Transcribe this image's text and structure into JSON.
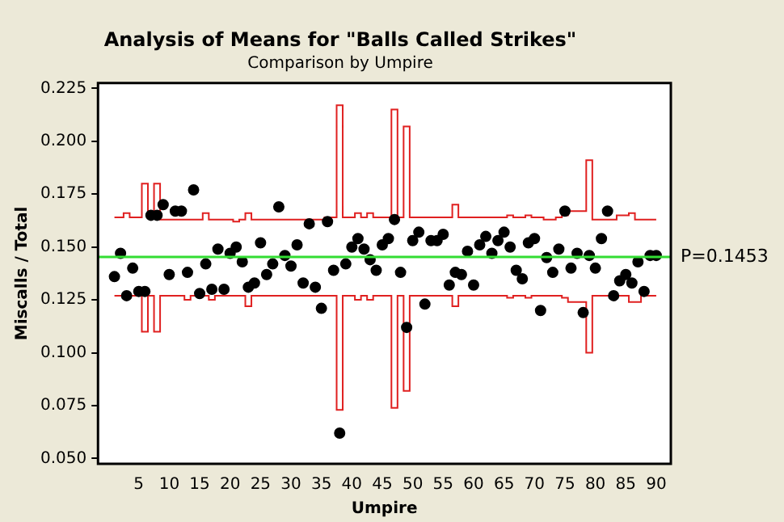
{
  "chart_data": {
    "type": "scatter",
    "title": "Analysis of Means for \"Balls Called Strikes\"",
    "subtitle": "Comparison by Umpire",
    "xlabel": "Umpire",
    "ylabel": "Miscalls / Total",
    "x": [
      1,
      2,
      3,
      4,
      5,
      6,
      7,
      8,
      9,
      10,
      11,
      12,
      13,
      14,
      15,
      16,
      17,
      18,
      19,
      20,
      21,
      22,
      23,
      24,
      25,
      26,
      27,
      28,
      29,
      30,
      31,
      32,
      33,
      34,
      35,
      36,
      37,
      38,
      39,
      40,
      41,
      42,
      43,
      44,
      45,
      46,
      47,
      48,
      49,
      50,
      51,
      52,
      53,
      54,
      55,
      56,
      57,
      58,
      59,
      60,
      61,
      62,
      63,
      64,
      65,
      66,
      67,
      68,
      69,
      70,
      71,
      72,
      73,
      74,
      75,
      76,
      77,
      78,
      79,
      80,
      81,
      82,
      83,
      84,
      85,
      86,
      87,
      88,
      89,
      90
    ],
    "series": [
      {
        "color": "#000000",
        "values": [
          0.136,
          0.147,
          0.127,
          0.14,
          0.129,
          0.129,
          0.165,
          0.165,
          0.17,
          0.137,
          0.167,
          0.167,
          0.138,
          0.177,
          0.128,
          0.142,
          0.13,
          0.149,
          0.13,
          0.147,
          0.15,
          0.143,
          0.131,
          0.133,
          0.152,
          0.137,
          0.142,
          0.169,
          0.146,
          0.141,
          0.151,
          0.133,
          0.161,
          0.131,
          0.121,
          0.162,
          0.139,
          0.062,
          0.142,
          0.15,
          0.154,
          0.149,
          0.144,
          0.139,
          0.151,
          0.154,
          0.163,
          0.138,
          0.112,
          0.153,
          0.157,
          0.123,
          0.153,
          0.153,
          0.156,
          0.132,
          0.138,
          0.137,
          0.148,
          0.132,
          0.151,
          0.155,
          0.147,
          0.153,
          0.157,
          0.15,
          0.139,
          0.135,
          0.152,
          0.154,
          0.12,
          0.145,
          0.138,
          0.149,
          0.167,
          0.14,
          0.147,
          0.119,
          0.146,
          0.14,
          0.154,
          0.167,
          0.127,
          0.134,
          0.137,
          0.133,
          0.143,
          0.129,
          0.146,
          0.146
        ]
      },
      {
        "type": "step",
        "marker": "none",
        "color": "#e02020",
        "values": [
          0.164,
          0.164,
          0.166,
          0.164,
          0.164,
          0.18,
          0.164,
          0.18,
          0.163,
          0.163,
          0.163,
          0.163,
          0.163,
          0.163,
          0.163,
          0.166,
          0.163,
          0.163,
          0.163,
          0.163,
          0.162,
          0.163,
          0.166,
          0.163,
          0.163,
          0.163,
          0.163,
          0.163,
          0.163,
          0.163,
          0.163,
          0.163,
          0.163,
          0.163,
          0.163,
          0.164,
          0.164,
          0.217,
          0.164,
          0.164,
          0.166,
          0.164,
          0.166,
          0.164,
          0.164,
          0.164,
          0.215,
          0.164,
          0.207,
          0.164,
          0.164,
          0.164,
          0.164,
          0.164,
          0.164,
          0.164,
          0.17,
          0.164,
          0.164,
          0.164,
          0.164,
          0.164,
          0.164,
          0.164,
          0.164,
          0.165,
          0.164,
          0.164,
          0.165,
          0.164,
          0.164,
          0.163,
          0.163,
          0.164,
          0.165,
          0.167,
          0.167,
          0.167,
          0.191,
          0.163,
          0.163,
          0.163,
          0.163,
          0.165,
          0.165,
          0.166,
          0.163,
          0.163,
          0.163,
          0.163
        ]
      },
      {
        "type": "step",
        "marker": "none",
        "color": "#e02020",
        "values": [
          0.127,
          0.127,
          0.127,
          0.127,
          0.127,
          0.11,
          0.127,
          0.11,
          0.127,
          0.127,
          0.127,
          0.127,
          0.125,
          0.127,
          0.127,
          0.127,
          0.125,
          0.127,
          0.127,
          0.127,
          0.127,
          0.127,
          0.122,
          0.127,
          0.127,
          0.127,
          0.127,
          0.127,
          0.127,
          0.127,
          0.127,
          0.127,
          0.127,
          0.127,
          0.127,
          0.127,
          0.127,
          0.073,
          0.127,
          0.127,
          0.125,
          0.127,
          0.125,
          0.127,
          0.127,
          0.127,
          0.074,
          0.127,
          0.082,
          0.127,
          0.127,
          0.127,
          0.127,
          0.127,
          0.127,
          0.127,
          0.122,
          0.127,
          0.127,
          0.127,
          0.127,
          0.127,
          0.127,
          0.127,
          0.127,
          0.126,
          0.127,
          0.127,
          0.126,
          0.127,
          0.127,
          0.127,
          0.127,
          0.127,
          0.126,
          0.124,
          0.124,
          0.124,
          0.1,
          0.127,
          0.127,
          0.127,
          0.127,
          0.127,
          0.127,
          0.124,
          0.124,
          0.127,
          0.127,
          0.127
        ]
      }
    ],
    "ref_lines": [
      {
        "axis": "y",
        "value": 0.1453,
        "label": "P=0.1453",
        "color": "#33dd33"
      }
    ],
    "xlim": [
      -1.7,
      92.4
    ],
    "xticks": [
      5,
      10,
      15,
      20,
      25,
      30,
      35,
      40,
      45,
      50,
      55,
      60,
      65,
      70,
      75,
      80,
      85,
      90
    ],
    "ylim": [
      0.0475,
      0.2275
    ],
    "yticks": [
      {
        "value": 0.05,
        "label": "0.050"
      },
      {
        "value": 0.075,
        "label": "0.075"
      },
      {
        "value": 0.1,
        "label": "0.100"
      },
      {
        "value": 0.125,
        "label": "0.125"
      },
      {
        "value": 0.15,
        "label": "0.150"
      },
      {
        "value": 0.175,
        "label": "0.175"
      },
      {
        "value": 0.2,
        "label": "0.200"
      },
      {
        "value": 0.225,
        "label": "0.225"
      }
    ],
    "grid": false,
    "legend": false,
    "marker": "circle"
  }
}
